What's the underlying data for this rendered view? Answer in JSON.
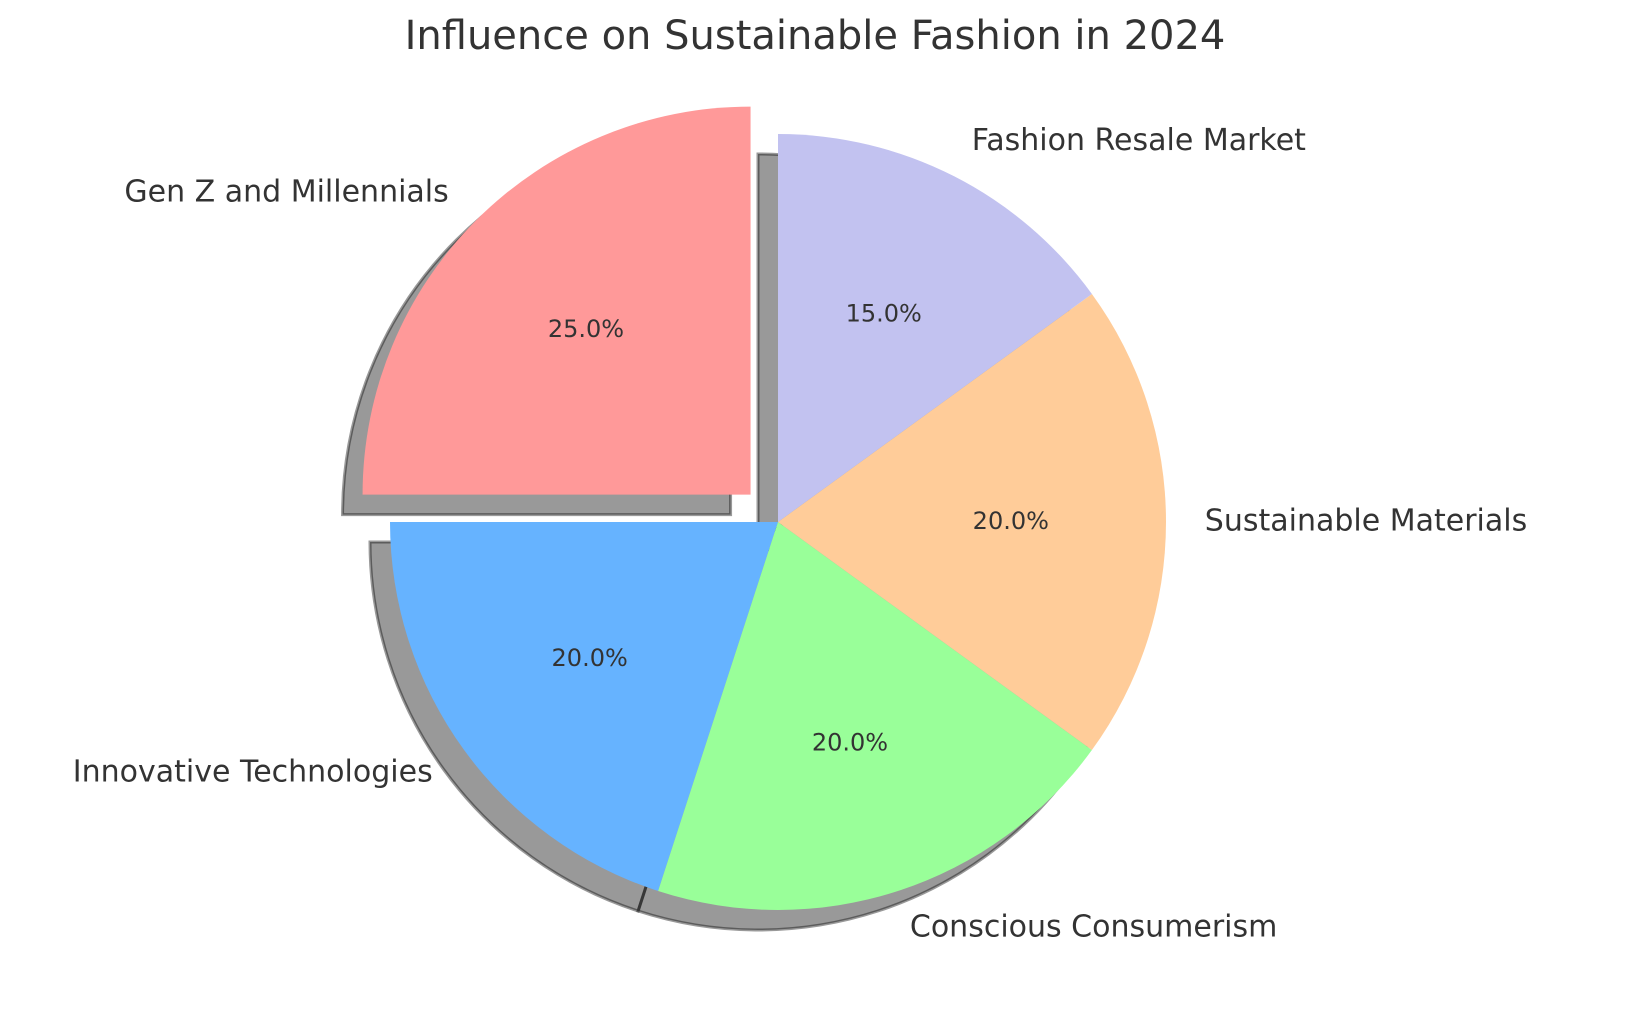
{
  "chart_data": {
    "type": "pie",
    "title": "Influence on Sustainable Fashion in 2024",
    "categories": [
      "Gen Z and Millennials",
      "Innovative Technologies",
      "Conscious Consumerism",
      "Sustainable Materials",
      "Fashion Resale Market"
    ],
    "values": [
      25,
      20,
      20,
      20,
      15
    ],
    "value_labels": [
      "25.0%",
      "20.0%",
      "20.0%",
      "20.0%",
      "15.0%"
    ],
    "colors": [
      "#ff9999",
      "#66b3ff",
      "#99ff99",
      "#ffcc99",
      "#c2c2f0"
    ],
    "explode": [
      0.1,
      0,
      0,
      0,
      0
    ],
    "start_angle": 90,
    "shadow": true
  }
}
